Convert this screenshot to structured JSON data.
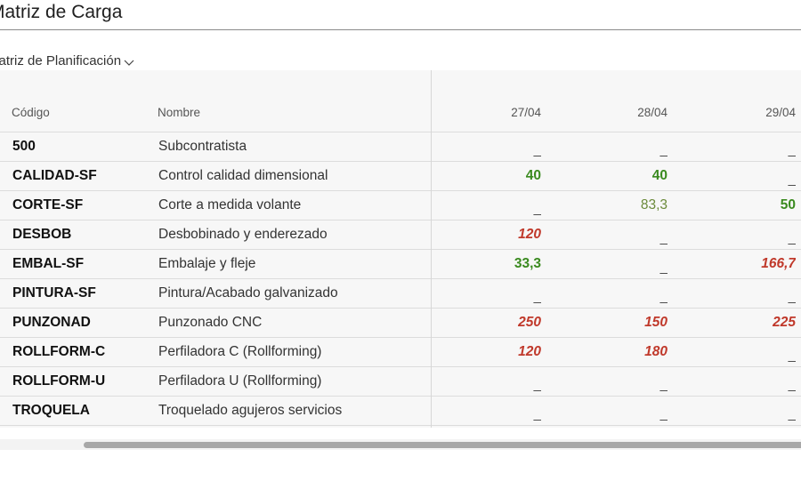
{
  "page": {
    "title": "Matriz de Carga"
  },
  "view_selector": {
    "label": "Matriz de Planificación"
  },
  "table": {
    "headers": {
      "code": "Código",
      "name": "Nombre",
      "dates": [
        "27/04",
        "28/04",
        "29/04"
      ]
    },
    "rows": [
      {
        "code": "500",
        "name": "Subcontratista",
        "values": [
          {
            "text": "_",
            "style": "dash"
          },
          {
            "text": "_",
            "style": "dash"
          },
          {
            "text": "_",
            "style": "dash"
          }
        ]
      },
      {
        "code": "CALIDAD-SF",
        "name": "Control calidad dimensional",
        "values": [
          {
            "text": "40",
            "style": "green"
          },
          {
            "text": "40",
            "style": "green"
          },
          {
            "text": "_",
            "style": "dash"
          }
        ]
      },
      {
        "code": "CORTE-SF",
        "name": "Corte a medida volante",
        "values": [
          {
            "text": "_",
            "style": "dash"
          },
          {
            "text": "83,3",
            "style": "olive"
          },
          {
            "text": "50",
            "style": "green"
          }
        ]
      },
      {
        "code": "DESBOB",
        "name": "Desbobinado y enderezado",
        "values": [
          {
            "text": "120",
            "style": "red"
          },
          {
            "text": "_",
            "style": "dash"
          },
          {
            "text": "_",
            "style": "dash"
          }
        ]
      },
      {
        "code": "EMBAL-SF",
        "name": "Embalaje y fleje",
        "values": [
          {
            "text": "33,3",
            "style": "green"
          },
          {
            "text": "_",
            "style": "dash"
          },
          {
            "text": "166,7",
            "style": "red"
          }
        ]
      },
      {
        "code": "PINTURA-SF",
        "name": "Pintura/Acabado galvanizado",
        "values": [
          {
            "text": "_",
            "style": "dash"
          },
          {
            "text": "_",
            "style": "dash"
          },
          {
            "text": "_",
            "style": "dash"
          }
        ]
      },
      {
        "code": "PUNZONAD",
        "name": "Punzonado CNC",
        "values": [
          {
            "text": "250",
            "style": "red"
          },
          {
            "text": "150",
            "style": "red"
          },
          {
            "text": "225",
            "style": "red"
          }
        ]
      },
      {
        "code": "ROLLFORM-C",
        "name": "Perfiladora C (Rollforming)",
        "values": [
          {
            "text": "120",
            "style": "red"
          },
          {
            "text": "180",
            "style": "red"
          },
          {
            "text": "_",
            "style": "dash"
          }
        ]
      },
      {
        "code": "ROLLFORM-U",
        "name": "Perfiladora U (Rollforming)",
        "values": [
          {
            "text": "_",
            "style": "dash"
          },
          {
            "text": "_",
            "style": "dash"
          },
          {
            "text": "_",
            "style": "dash"
          }
        ]
      },
      {
        "code": "TROQUELA",
        "name": "Troquelado agujeros servicios",
        "values": [
          {
            "text": "_",
            "style": "dash"
          },
          {
            "text": "_",
            "style": "dash"
          },
          {
            "text": "_",
            "style": "dash"
          }
        ]
      }
    ]
  },
  "colors": {
    "green": "#3a8a1f",
    "olive": "#6b8a3a",
    "red": "#c0392b"
  },
  "icons": {
    "view_selector": "chevron-down-icon"
  }
}
